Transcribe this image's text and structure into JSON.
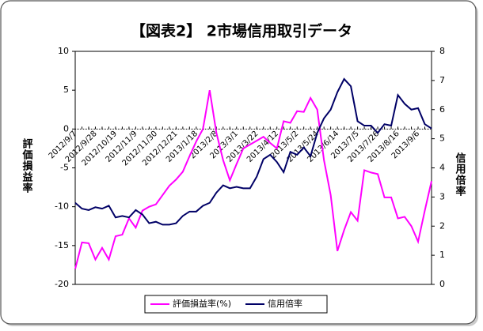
{
  "chart_data": {
    "type": "line",
    "title": "【図表2】 2市場信用取引データ",
    "y_label": "評価損益率",
    "y2_label": "信用倍率",
    "categories": [
      "2012/9/7",
      null,
      null,
      "2012/9/28",
      null,
      null,
      "2012/10/19",
      null,
      null,
      "2012/11/9",
      null,
      null,
      "2012/11/30",
      null,
      null,
      "2012/12/21",
      null,
      null,
      "2013/1/18",
      null,
      null,
      "2013/2/8",
      null,
      null,
      "2013/3/1",
      null,
      null,
      "2013/3/22",
      null,
      null,
      "2013/4/12",
      null,
      null,
      "2013/5/2",
      null,
      null,
      "2013/5/24",
      null,
      null,
      "2013/6/14",
      null,
      null,
      "2013/7/5",
      null,
      null,
      "2013/7/26",
      null,
      null,
      "2013/8/16",
      null,
      null,
      "2013/9/6",
      null,
      null
    ],
    "series": [
      {
        "name": "評価損益率(%)",
        "color": "#ff00ff",
        "values": [
          -18,
          -14.6,
          -14.7,
          -16.8,
          -15.3,
          -16.8,
          -13.8,
          -13.6,
          -11.5,
          -12.7,
          -10.5,
          -10,
          -9.7,
          -8.5,
          -7.3,
          -6.5,
          -5.5,
          -3.5,
          -1.6,
          0,
          5,
          -0.5,
          -4,
          -6.6,
          -4.5,
          -2.5,
          -2,
          -1.5,
          -1,
          -1.8,
          -2.5,
          1,
          0.8,
          2.3,
          2.2,
          4,
          2.5,
          -4,
          -8.5,
          -15.7,
          -13,
          -10.7,
          -11.8,
          -5.3,
          -5.6,
          -5.8,
          -8.8,
          -8.8,
          -11.5,
          -11.3,
          -12.5,
          -14.5,
          -10.5,
          -6.7
        ]
      },
      {
        "name": "信用倍率",
        "color": "#000066",
        "axis": "y2",
        "values": [
          2.8,
          2.6,
          2.55,
          2.65,
          2.6,
          2.7,
          2.3,
          2.35,
          2.3,
          2.55,
          2.4,
          2.1,
          2.15,
          2.05,
          2.05,
          2.1,
          2.35,
          2.5,
          2.5,
          2.7,
          2.8,
          3.15,
          3.4,
          3.3,
          3.35,
          3.3,
          3.3,
          3.7,
          4.3,
          4.45,
          4.2,
          3.85,
          4.55,
          4.45,
          4.7,
          4.4,
          5.2,
          5.7,
          6,
          6.6,
          7.05,
          6.8,
          5.6,
          5.45,
          5.45,
          5.2,
          5.5,
          5.45,
          6.5,
          6.2,
          6,
          6.05,
          5.5,
          5.35
        ]
      }
    ],
    "ylim": [
      -20,
      10
    ],
    "yticks": [
      -20,
      -15,
      -10,
      -5,
      0,
      5,
      10
    ],
    "y2lim": [
      0,
      8
    ],
    "y2ticks": [
      0,
      1,
      2,
      3,
      4,
      5,
      6,
      7,
      8
    ],
    "legend": "bottom"
  }
}
